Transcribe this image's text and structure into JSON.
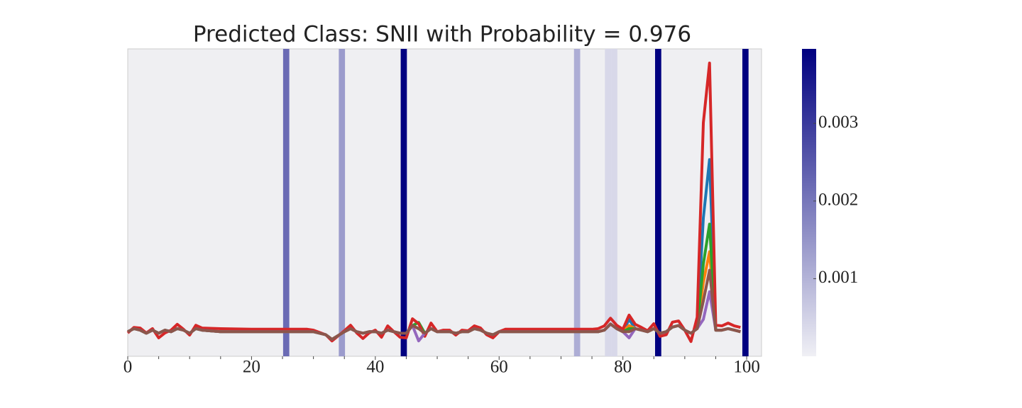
{
  "chart_data": {
    "type": "line",
    "title": "Predicted Class: SNII with Probability = 0.976",
    "x": [
      0,
      1,
      2,
      3,
      4,
      5,
      6,
      7,
      8,
      9,
      10,
      11,
      12,
      15,
      20,
      25,
      29,
      30,
      32,
      33,
      35,
      36,
      37,
      38,
      39,
      40,
      41,
      42,
      43,
      44,
      45,
      46,
      47,
      48,
      49,
      50,
      51,
      52,
      53,
      54,
      55,
      56,
      57,
      58,
      59,
      60,
      61,
      65,
      70,
      75,
      76,
      77,
      78,
      79,
      80,
      81,
      82,
      83,
      84,
      85,
      86,
      87,
      88,
      89,
      90,
      91,
      92,
      93,
      94,
      95,
      96,
      97,
      98,
      99
    ],
    "series": [
      {
        "color": "#1f77b4",
        "values": [
          8,
          9,
          8.5,
          7.5,
          8.5,
          7.5,
          8.5,
          8,
          9,
          8.5,
          7.5,
          9,
          8.5,
          8,
          8,
          8,
          8,
          8,
          7,
          5.5,
          8,
          9,
          8,
          7.5,
          8,
          8,
          7.5,
          8.5,
          8,
          7.5,
          7.5,
          10,
          9,
          7.5,
          9,
          8,
          8,
          8,
          7.5,
          8,
          8,
          9,
          8.5,
          7.5,
          7,
          8,
          8,
          8,
          8,
          8,
          8,
          8.5,
          10.5,
          9,
          8,
          12,
          9,
          8.5,
          8,
          9,
          7.5,
          8,
          9.5,
          10,
          8.5,
          7.5,
          9,
          45,
          64,
          8.5,
          8.5,
          9,
          8.5,
          8
        ]
      },
      {
        "color": "#ff7f0e",
        "values": [
          8,
          9,
          8.5,
          7.5,
          8.5,
          7.5,
          8.5,
          8,
          9,
          8.5,
          7.5,
          9,
          8.5,
          8,
          8,
          8,
          8,
          8,
          7,
          5.5,
          8,
          9,
          8,
          7.5,
          8,
          8,
          7.5,
          8.5,
          8,
          7.5,
          7.5,
          10,
          9,
          7.5,
          9,
          8,
          8,
          8,
          7.5,
          8,
          8,
          9,
          8.5,
          7.5,
          7,
          8,
          8,
          8,
          8,
          8,
          8,
          8.5,
          10.5,
          9,
          8,
          10,
          9,
          8.5,
          8,
          9,
          7.5,
          8,
          9.5,
          10,
          8.5,
          7.5,
          9,
          24,
          34,
          8.5,
          8.5,
          9,
          8.5,
          8
        ]
      },
      {
        "color": "#2ca02c",
        "values": [
          8,
          9,
          8.5,
          7.5,
          8.5,
          7.5,
          8.5,
          8,
          9,
          8.5,
          7.5,
          9,
          8.5,
          8,
          8,
          8,
          8,
          8,
          7,
          5.5,
          8,
          9,
          8,
          7.5,
          8,
          8,
          7.5,
          8.5,
          8,
          7.5,
          7.5,
          10,
          11,
          7.5,
          9,
          8,
          8,
          8,
          7.5,
          8,
          8,
          9,
          8.5,
          7.5,
          7,
          8,
          8,
          8,
          8,
          8,
          8,
          8.5,
          10.5,
          9,
          8,
          9,
          9,
          8.5,
          8,
          9,
          7.5,
          8,
          9.5,
          10,
          8.5,
          7.5,
          9,
          30,
          43,
          8.5,
          8.5,
          9,
          8.5,
          8
        ]
      },
      {
        "color": "#d62728",
        "values": [
          7.6,
          9.4,
          9.2,
          7.6,
          9,
          6,
          7.6,
          8.5,
          10.4,
          8.8,
          6.9,
          10.1,
          9.2,
          9,
          8.8,
          8.8,
          8.8,
          8.5,
          7,
          5,
          8.3,
          10.1,
          7.6,
          5.8,
          7.6,
          8.5,
          6.2,
          9.9,
          8,
          6.2,
          6,
          12.2,
          10.6,
          6.5,
          10.8,
          8,
          8.5,
          8.5,
          6.9,
          8.5,
          8.3,
          9.9,
          9.2,
          7,
          6,
          8,
          8.8,
          8.8,
          8.8,
          8.8,
          9,
          9.9,
          12.4,
          10.1,
          8.8,
          13.4,
          10.4,
          9.4,
          8.3,
          10.6,
          6.5,
          7,
          11.1,
          11.5,
          8.5,
          4.8,
          12.7,
          76,
          95.4,
          10.1,
          9.9,
          10.8,
          9.9,
          9.4
        ]
      },
      {
        "color": "#9467bd",
        "values": [
          8,
          9,
          8.5,
          7.5,
          8.5,
          7.5,
          8.5,
          8,
          9,
          8.5,
          7.5,
          9,
          8.5,
          8,
          8,
          8,
          8,
          8,
          7,
          5.5,
          8,
          9,
          8,
          7.5,
          8,
          8,
          7.5,
          8.5,
          8,
          7.5,
          7.5,
          10,
          5,
          7.5,
          9,
          8,
          8,
          8,
          7.5,
          8,
          8,
          9,
          8.5,
          7.5,
          7,
          8,
          8,
          8,
          8,
          8,
          8,
          8.5,
          10.5,
          9,
          8,
          6,
          9,
          8.5,
          8,
          9,
          7.5,
          8,
          9.5,
          10,
          8.5,
          7.5,
          9,
          12,
          21,
          8.5,
          8.5,
          9,
          8.5,
          8
        ]
      },
      {
        "color": "#8c564b",
        "values": [
          8,
          9,
          8.5,
          7.5,
          8.5,
          7.5,
          8.5,
          8,
          9,
          8.5,
          7.5,
          9,
          8.5,
          8,
          8,
          8,
          8,
          8,
          7,
          5.5,
          8,
          9,
          8,
          7.5,
          8,
          8,
          7.5,
          8.5,
          8,
          7.5,
          7.5,
          10,
          9,
          7.5,
          9,
          8,
          8,
          8,
          7.5,
          8,
          8,
          9,
          8.5,
          7.5,
          7,
          8,
          8,
          8,
          8,
          8,
          8,
          8.5,
          10.5,
          9,
          8,
          8,
          9,
          8.5,
          8,
          9,
          7.5,
          8,
          9.5,
          10,
          8.5,
          7.5,
          9,
          18,
          28,
          8.5,
          8.5,
          9,
          8.5,
          8
        ]
      }
    ],
    "xlim": [
      0,
      102.4
    ],
    "xticks": [
      0,
      20,
      40,
      60,
      80,
      100
    ],
    "xminorticks": [
      5,
      10,
      15,
      25,
      30,
      35,
      45,
      50,
      55,
      65,
      70,
      75,
      85,
      90,
      95
    ],
    "ylim": [
      0,
      100
    ],
    "heat": {
      "x": [
        25.6,
        34.6,
        44.6,
        72.6,
        77.6,
        78.6,
        85.7,
        99.8
      ],
      "values": [
        0.0022,
        0.0014,
        0.00396,
        0.0011,
        0.0004,
        0.0004,
        0.00396,
        0.00396
      ]
    },
    "colorbar": {
      "lim": [
        0,
        0.00396
      ],
      "ticks": [
        0.001,
        0.002,
        0.003
      ],
      "low_color": "#f0f0f5",
      "high_color": "#000080"
    }
  }
}
